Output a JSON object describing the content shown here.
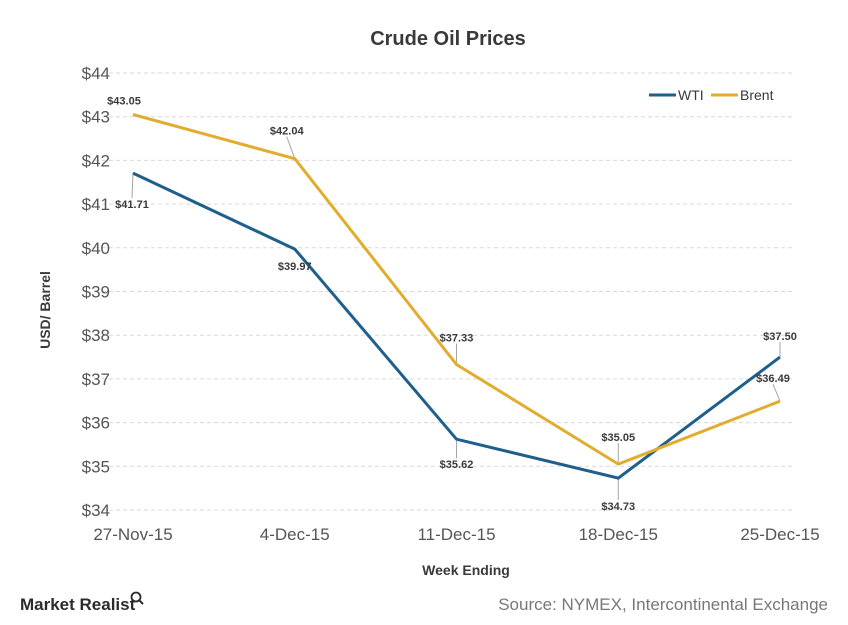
{
  "chart_data": {
    "type": "line",
    "title": "Crude  Oil  Prices",
    "xlabel": "Week Ending",
    "ylabel": "USD/ Barrel",
    "categories": [
      "27-Nov-15",
      "4-Dec-15",
      "11-Dec-15",
      "18-Dec-15",
      "25-Dec-15"
    ],
    "ylim": [
      34,
      44
    ],
    "yticks": [
      34,
      35,
      36,
      37,
      38,
      39,
      40,
      41,
      42,
      43,
      44
    ],
    "ytick_prefix": "$",
    "grid": true,
    "legend_position": "top-right",
    "series": [
      {
        "name": "WTI",
        "color": "#1f5f8b",
        "values": [
          41.71,
          39.97,
          35.62,
          34.73,
          37.5
        ],
        "labels": [
          "$41.71",
          "$39.97",
          "$35.62",
          "$34.73",
          "$37.50"
        ]
      },
      {
        "name": "Brent",
        "color": "#e2ac2e",
        "values": [
          43.05,
          42.04,
          37.33,
          35.05,
          36.49
        ],
        "labels": [
          "$43.05",
          "$42.04",
          "$37.33",
          "$35.05",
          "$36.49"
        ]
      }
    ]
  },
  "footer": {
    "brand": "Market Realist",
    "brand_icon": "magnifier-icon",
    "source": "Source: NYMEX, Intercontinental Exchange"
  }
}
